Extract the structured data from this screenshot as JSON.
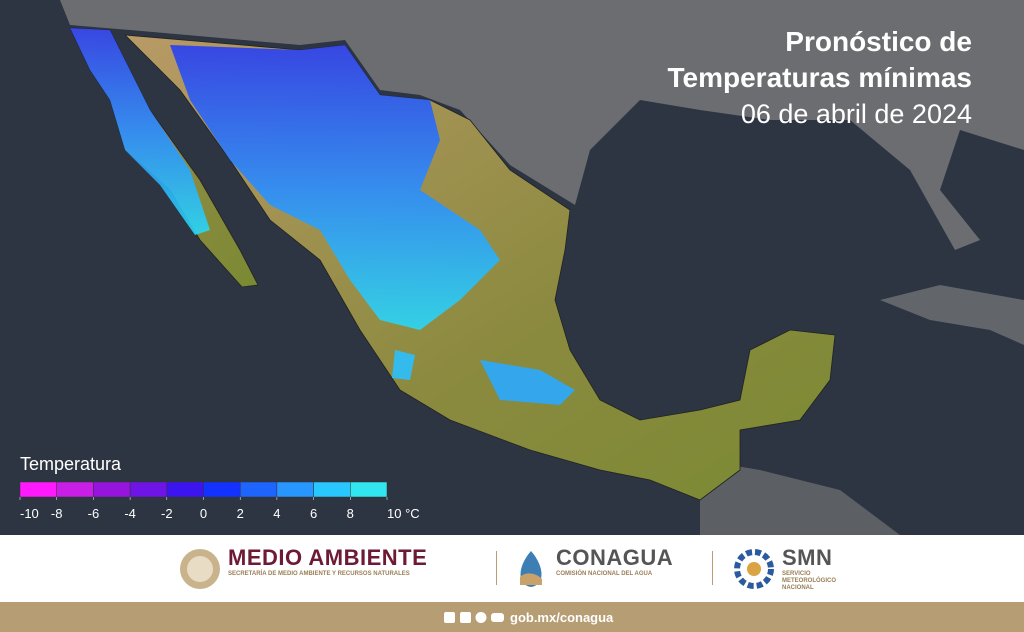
{
  "header": {
    "title_lines": [
      "Pronóstico de",
      "Temperaturas mínimas"
    ],
    "date": "06 de abril de 2024"
  },
  "legend": {
    "title": "Temperatura",
    "colors": [
      "#ff19ff",
      "#c81ee6",
      "#9614dc",
      "#6e14e6",
      "#3c14f0",
      "#1432ff",
      "#1e64ff",
      "#2896ff",
      "#28c8ff",
      "#32e6f0"
    ],
    "ticks": [
      -10,
      -8,
      -6,
      -4,
      -2,
      0,
      2,
      4,
      6,
      8,
      {
        "value": 10,
        "label": "10 °C"
      }
    ]
  },
  "footer": {
    "logos": [
      {
        "name": "MEDIO AMBIENTE",
        "subtitle": [
          "SECRETARÍA DE MEDIO AMBIENTE Y RECURSOS NATURALES"
        ]
      },
      {
        "name": "CONAGUA",
        "subtitle": [
          "COMISIÓN NACIONAL DEL AGUA"
        ]
      },
      {
        "name": "SMN",
        "subtitle": [
          "SERVICIO",
          "METEOROLÓGICO",
          "NACIONAL"
        ]
      }
    ],
    "url": "gob.mx/conagua"
  }
}
